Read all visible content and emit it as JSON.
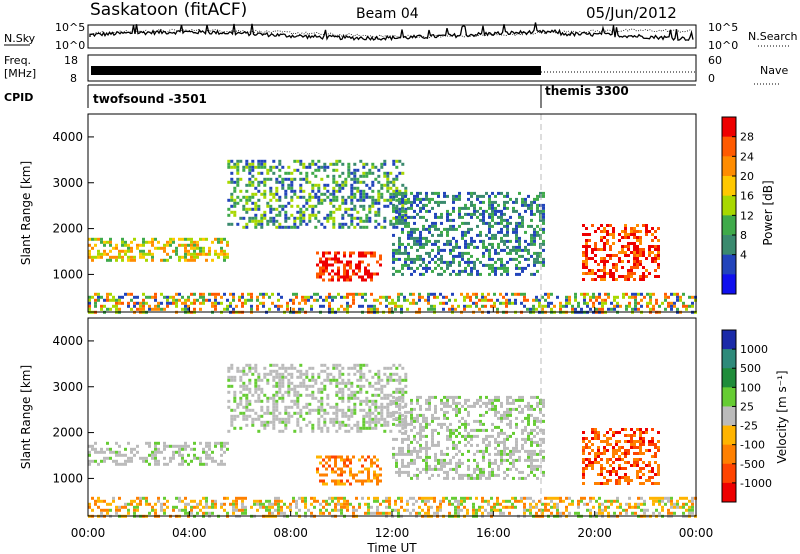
{
  "header": {
    "title": "Saskatoon (fitACF)",
    "beam": "Beam 04",
    "date": "05/Jun/2012"
  },
  "top_panels": {
    "nsky_label": "N.Sky",
    "nsky_ticks": [
      "10^5",
      "10^0"
    ],
    "nsearch_label": "N.Search",
    "nsearch_ticks": [
      "10^5",
      "10^0"
    ],
    "freq_label": [
      "Freq.",
      "[MHz]"
    ],
    "freq_ticks": [
      "18",
      "8"
    ],
    "nave_label": "Nave",
    "nave_ticks": [
      "60",
      "0"
    ],
    "cpid_label": "CPID",
    "cpid_segments": [
      {
        "name": "twofsound -3501",
        "start_hour": 0,
        "end_hour": 18
      },
      {
        "name": "themis 3300",
        "start_hour": 18,
        "end_hour": 24
      }
    ]
  },
  "power_colorbar": {
    "label": "Power [dB]",
    "ticks": [
      "28",
      "24",
      "20",
      "16",
      "12",
      "8",
      "4"
    ],
    "colors": [
      "#ee0000",
      "#ff5a00",
      "#ff8c00",
      "#ffc800",
      "#a8d800",
      "#3faa4a",
      "#3a8a6e",
      "#2244bb",
      "#1010ee"
    ]
  },
  "velocity_colorbar": {
    "label": "Velocity [m s⁻¹]",
    "ticks": [
      "1000",
      "500",
      "100",
      "25",
      "-25",
      "-100",
      "-500",
      "-1000"
    ],
    "colors": [
      "#1a2aa8",
      "#2e8a7a",
      "#1f8c3a",
      "#66cc33",
      "#bbbbbb",
      "#ffb400",
      "#ff8000",
      "#ff4400",
      "#ee0000"
    ]
  },
  "chart_data": {
    "type": "heatmap",
    "xlabel": "Time UT",
    "ylabel": "Slant Range [km]",
    "xticks": [
      "00:00",
      "04:00",
      "08:00",
      "12:00",
      "16:00",
      "20:00",
      "00:00"
    ],
    "xlim_hours": [
      0,
      24
    ],
    "ylim_km": [
      180,
      4500
    ],
    "yticks": [
      1000,
      2000,
      3000,
      4000
    ],
    "mode_change_hour": 18,
    "panels": [
      "power",
      "velocity"
    ],
    "nsky_level_log": 3.4,
    "freq_mhz_during_twofsound": 11,
    "echo_regions": [
      {
        "t0": 0,
        "t1": 5.5,
        "r0": 1300,
        "r1": 1800,
        "power": "12-20",
        "velocity": "-25..25"
      },
      {
        "t0": 5.5,
        "t1": 12.5,
        "r0": 2000,
        "r1": 3500,
        "power": "8-16",
        "velocity": "-25..25"
      },
      {
        "t0": 9,
        "t1": 11.5,
        "r0": 900,
        "r1": 1500,
        "power": "24-28",
        "velocity": "-100..-500"
      },
      {
        "t0": 12,
        "t1": 18,
        "r0": 1000,
        "r1": 2800,
        "power": "4-12",
        "velocity": "-25..25"
      },
      {
        "t0": 19.5,
        "t1": 22.5,
        "r0": 900,
        "r1": 2100,
        "power": "20-28",
        "velocity": "-100..-1000"
      },
      {
        "t0": 0,
        "t1": 24,
        "r0": 180,
        "r1": 600,
        "power": "8-24",
        "velocity": "-25..-500"
      }
    ]
  }
}
